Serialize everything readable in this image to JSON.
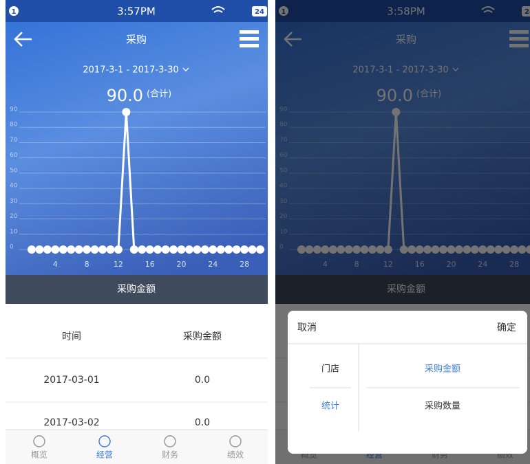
{
  "screens": [
    {
      "status_time": "3:57PM",
      "notification": "1",
      "battery": "24"
    },
    {
      "status_time": "3:58PM",
      "notification": "1",
      "battery": "24"
    }
  ],
  "header": {
    "title": "采购",
    "date_range": "2017-3-1 - 2017-3-30",
    "total": "90.0",
    "total_note": "(合计)"
  },
  "chart": {
    "type": "line",
    "x": [
      1,
      2,
      3,
      4,
      5,
      6,
      7,
      8,
      9,
      10,
      11,
      12,
      13,
      14,
      15,
      16,
      17,
      18,
      19,
      20,
      21,
      22,
      23,
      24,
      25,
      26,
      27,
      28,
      29,
      30
    ],
    "values": [
      0,
      0,
      0,
      0,
      0,
      0,
      0,
      0,
      0,
      0,
      0,
      0,
      90,
      0,
      0,
      0,
      0,
      0,
      0,
      0,
      0,
      0,
      0,
      0,
      0,
      0,
      0,
      0,
      0,
      0
    ],
    "xlim": [
      1,
      30
    ],
    "xticks": [
      4,
      8,
      12,
      16,
      20,
      24,
      28
    ],
    "ylim": [
      0,
      90
    ],
    "yticks": [
      0,
      10,
      20,
      30,
      40,
      50,
      60,
      70,
      80,
      90
    ],
    "grid": true,
    "color": "#ffffff",
    "footer": "采购金额"
  },
  "table": {
    "columns": [
      "时间",
      "采购金额"
    ],
    "rows": [
      [
        "2017-03-01",
        "0.0"
      ],
      [
        "2017-03-02",
        "0.0"
      ]
    ]
  },
  "tabs": [
    "概览",
    "经营",
    "财务",
    "绩效"
  ],
  "active_tab": 1,
  "dialog": {
    "cancel": "取消",
    "confirm": "确定",
    "left_options": [
      "门店",
      "统计"
    ],
    "right_options": [
      "采购金额",
      "采购数量"
    ],
    "active_left": 1,
    "active_right": 0
  }
}
